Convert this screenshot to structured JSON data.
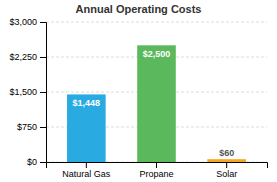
{
  "chart_data": {
    "type": "bar",
    "title": "Annual Operating Costs",
    "categories": [
      "Natural Gas",
      "Propane",
      "Solar"
    ],
    "values": [
      1448,
      2500,
      60
    ],
    "value_labels": [
      "$1,448",
      "$2,500",
      "$60"
    ],
    "data_labels": true,
    "colors": [
      "#29ABE2",
      "#5CB85C",
      "#F5A623"
    ],
    "ylim": [
      0,
      3000
    ],
    "yticks": [
      {
        "value": 0,
        "label": "$0"
      },
      {
        "value": 750,
        "label": "$750"
      },
      {
        "value": 1500,
        "label": "$1,500"
      },
      {
        "value": 2250,
        "label": "$2,250"
      },
      {
        "value": 3000,
        "label": "$3,000"
      }
    ],
    "grid": true
  }
}
